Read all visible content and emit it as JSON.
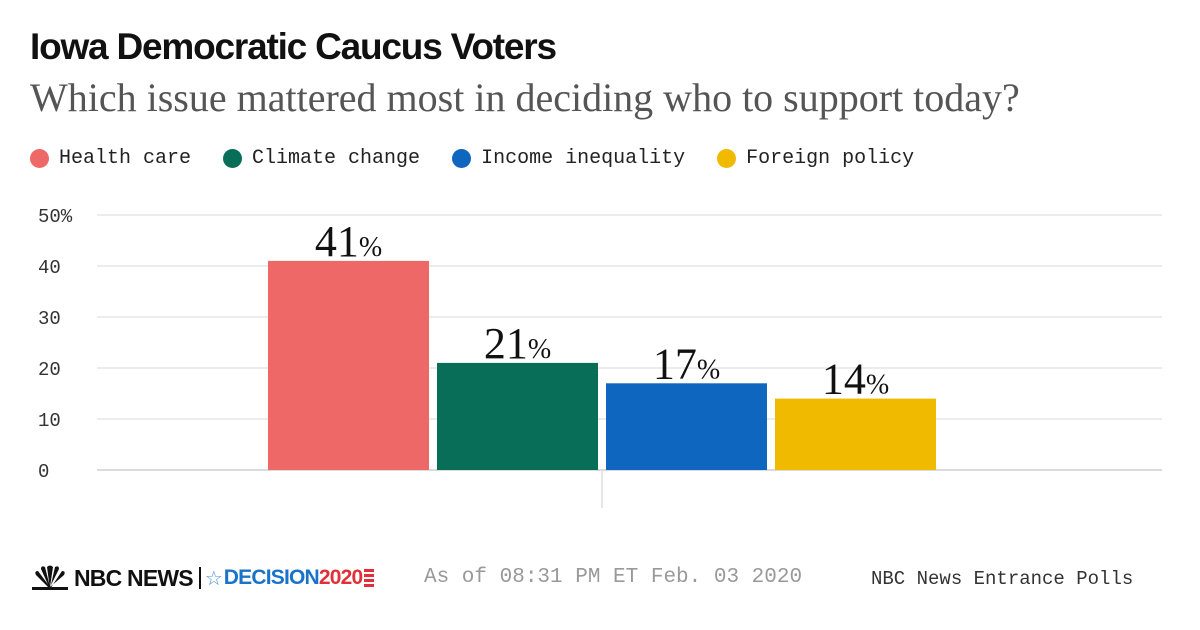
{
  "header": {
    "title": "Iowa Democratic Caucus Voters",
    "subtitle": "Which issue mattered most in deciding who to support today?"
  },
  "legend": [
    {
      "label": "Health care",
      "color": "#ef6868"
    },
    {
      "label": "Climate change",
      "color": "#086e58"
    },
    {
      "label": "Income inequality",
      "color": "#0f66be"
    },
    {
      "label": "Foreign policy",
      "color": "#efba00"
    }
  ],
  "chart_data": {
    "type": "bar",
    "title": "Iowa Democratic Caucus Voters",
    "subtitle": "Which issue mattered most in deciding who to support today?",
    "categories": [
      "Health care",
      "Climate change",
      "Income inequality",
      "Foreign policy"
    ],
    "values": [
      41,
      21,
      17,
      14
    ],
    "value_labels": [
      "41",
      "21",
      "17",
      "14"
    ],
    "value_suffix": "%",
    "colors": [
      "#ef6868",
      "#086e58",
      "#0f66be",
      "#efba00"
    ],
    "y_ticks": [
      "0",
      "10",
      "20",
      "30",
      "40",
      "50%"
    ],
    "y_tick_values": [
      0,
      10,
      20,
      30,
      40,
      50
    ],
    "ylim": [
      0,
      50
    ],
    "grid": true,
    "legend_position": "top"
  },
  "footer": {
    "brand": "NBC NEWS",
    "decision_text": "DECISION",
    "decision_year": "2020",
    "as_of": "As of 08:31 PM ET Feb. 03 2020",
    "source": "NBC News Entrance Polls"
  },
  "icons": {
    "peacock": "peacock-icon",
    "star": "star-icon",
    "flag": "flag-icon"
  }
}
